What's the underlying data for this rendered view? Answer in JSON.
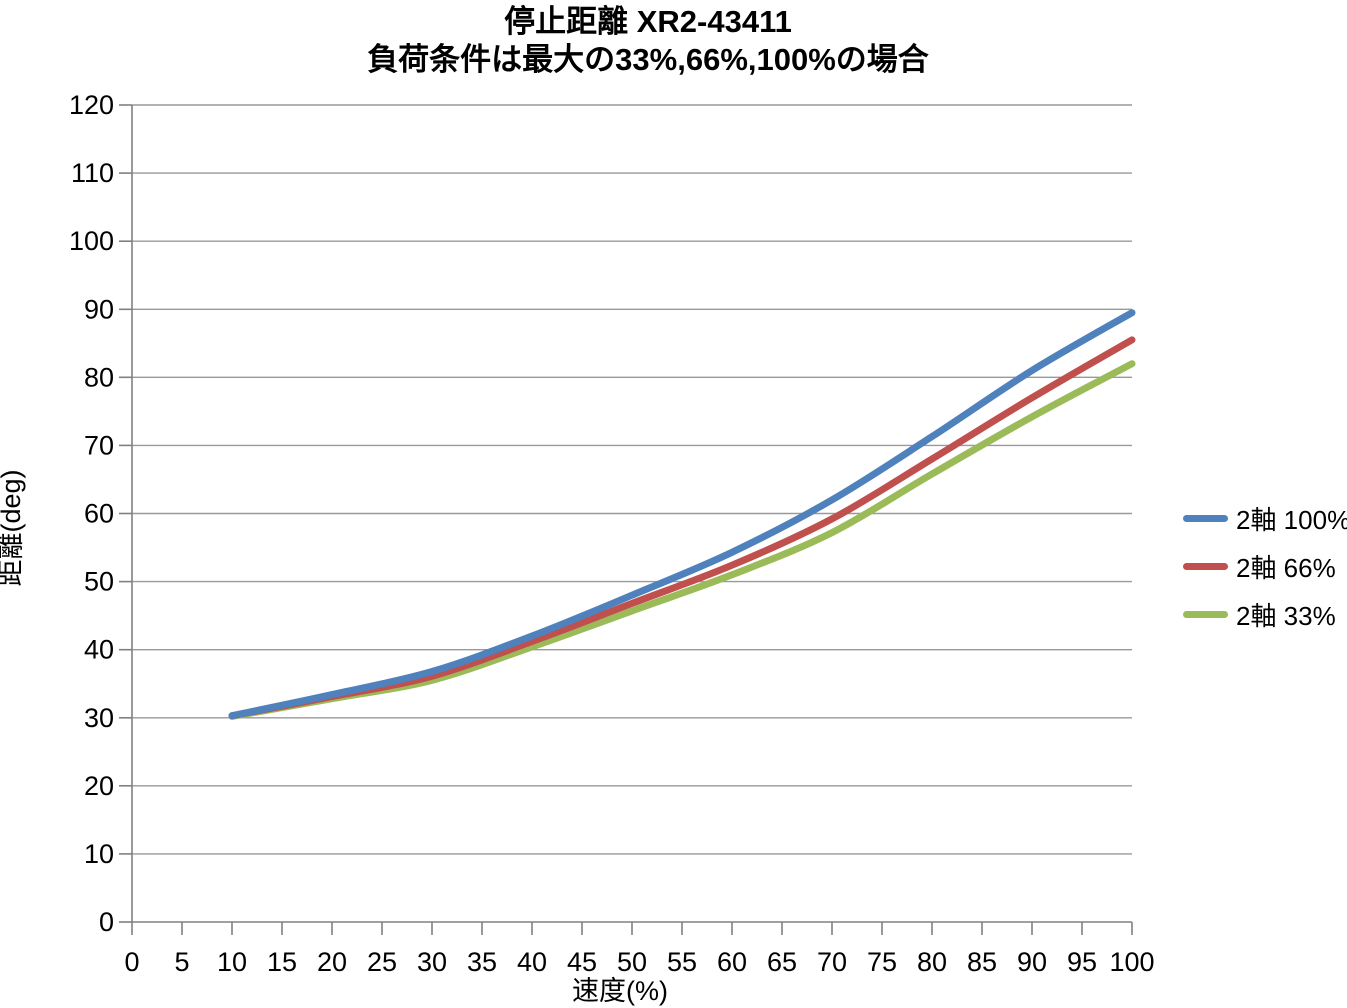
{
  "page": {
    "background": "#FFFFFF"
  },
  "chart_data": {
    "type": "line",
    "title": "停止距離 XR2-43411",
    "subtitle": "負荷条件は最大の33%,66%,100%の場合",
    "xlabel": "速度(%)",
    "ylabel": "距離(deg)",
    "xlim": [
      0,
      100
    ],
    "ylim": [
      0,
      120
    ],
    "xtick_step": 5,
    "ytick_step": 10,
    "grid": "horizontal",
    "legend_position": "right",
    "axis_color": "#808080",
    "grid_color": "#999999",
    "text_color": "#000000",
    "x": [
      10,
      20,
      30,
      40,
      50,
      60,
      70,
      80,
      90,
      100
    ],
    "series": [
      {
        "name": "2軸 100%",
        "color": "#4F81BD",
        "values": [
          30.3,
          33.4,
          36.8,
          42.0,
          48.0,
          54.3,
          62.0,
          71.3,
          81.0,
          89.5
        ]
      },
      {
        "name": "2軸 66%",
        "color": "#C0504D",
        "values": [
          30.3,
          33.1,
          36.1,
          41.2,
          46.8,
          52.4,
          59.2,
          68.0,
          77.0,
          85.5
        ]
      },
      {
        "name": "2軸 33%",
        "color": "#9BBB59",
        "values": [
          30.2,
          32.8,
          35.5,
          40.4,
          45.7,
          51.0,
          57.2,
          65.8,
          74.2,
          82.0
        ]
      }
    ]
  }
}
